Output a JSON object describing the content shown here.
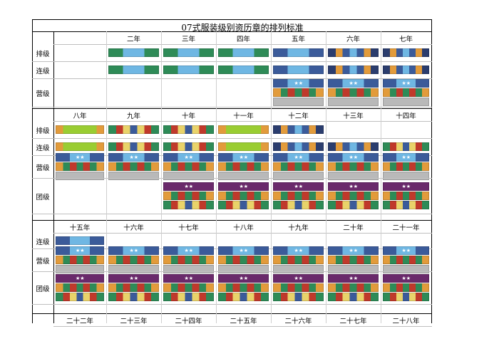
{
  "title": "07式服装级别资历章的排列标准",
  "sections": [
    {
      "years": [
        "",
        "二年",
        "三年",
        "四年",
        "五年",
        "六年",
        "七年"
      ],
      "rows": [
        {
          "label": "排级",
          "cells": [
            "",
            "A",
            "A",
            "A",
            "B",
            "C",
            "D"
          ]
        },
        {
          "label": "连级",
          "cells": [
            "",
            "A",
            "A",
            "A",
            "B",
            "C",
            "D"
          ]
        },
        {
          "label": "营级",
          "cells": [
            "",
            "",
            "",
            "",
            "E",
            "E",
            "E"
          ]
        }
      ]
    },
    {
      "years": [
        "八年",
        "九年",
        "十年",
        "十一年",
        "十二年",
        "十三年",
        "十四年"
      ],
      "rows": [
        {
          "label": "排级",
          "cells": [
            "F",
            "G",
            "H",
            "F",
            "I",
            "",
            ""
          ]
        },
        {
          "label": "连级",
          "cells": [
            "F",
            "G",
            "H",
            "F",
            "I",
            "C",
            "G"
          ]
        },
        {
          "label": "营级",
          "cells": [
            "E",
            "E",
            "E",
            "E",
            "E",
            "E",
            "E"
          ]
        },
        {
          "label": "团级",
          "cells": [
            "",
            "",
            "J",
            "J",
            "J",
            "J",
            "J"
          ]
        }
      ]
    },
    {
      "years": [
        "十五年",
        "十六年",
        "十七年",
        "十八年",
        "十九年",
        "二十年",
        "二十一年"
      ],
      "rows": [
        {
          "label": "连级",
          "cells": [
            "B",
            "",
            "",
            "",
            "",
            "",
            ""
          ]
        },
        {
          "label": "营级",
          "cells": [
            "E",
            "E",
            "E",
            "E",
            "E",
            "E",
            "E"
          ]
        },
        {
          "label": "团级",
          "cells": [
            "J",
            "J",
            "J",
            "J",
            "J",
            "J",
            "J"
          ]
        }
      ]
    },
    {
      "years": [
        "二十二年",
        "二十三年",
        "二十四年",
        "二十五年",
        "二十六年",
        "二十七年",
        "二十八年"
      ],
      "rows": []
    }
  ],
  "colors": {
    "green": "#2e8b57",
    "lime": "#9acd32",
    "blue": "#3b5b9a",
    "sky": "#6fb7e3",
    "red": "#c0392b",
    "orange": "#e29b3b",
    "yellow": "#e9d36a",
    "purple": "#6a2a6b",
    "gray": "#b9b9b9",
    "navy": "#2b3d6e"
  }
}
